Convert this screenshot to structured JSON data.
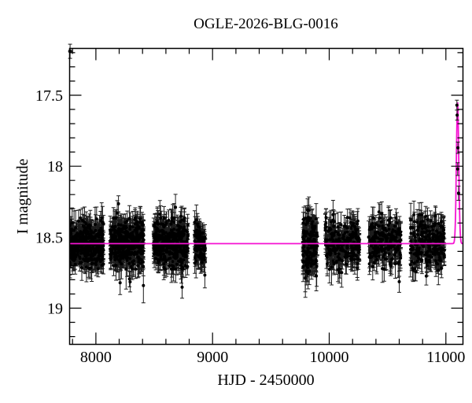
{
  "figure": {
    "background": "#ffffff"
  },
  "chart_data": {
    "type": "scatter",
    "title": "OGLE-2026-BLG-0016",
    "xlabel": "HJD - 2450000",
    "ylabel": "I magnitude",
    "x_range": [
      7775,
      11146
    ],
    "y_range_mag_top_to_bottom": [
      17.17,
      19.255
    ],
    "y_axis_inverted": true,
    "grid": false,
    "legend": "none",
    "x_ticks": [
      {
        "value": 8000,
        "label": "8000"
      },
      {
        "value": 9000,
        "label": "9000"
      },
      {
        "value": 10000,
        "label": "10000"
      },
      {
        "value": 11000,
        "label": "11000"
      }
    ],
    "x_minor_step": 200,
    "y_ticks": [
      {
        "value": 17.5,
        "label": "17.5"
      },
      {
        "value": 18.0,
        "label": "18"
      },
      {
        "value": 18.5,
        "label": "18.5"
      },
      {
        "value": 19.0,
        "label": "19"
      }
    ],
    "y_minor_step": 0.1,
    "colors": {
      "points": "#000000",
      "error_bars": "#1c1c1c",
      "model_curve": "#f513d2",
      "frame": "#000000",
      "background": "#ffffff"
    },
    "model": {
      "description": "flat baseline with sharp brightening event near right edge",
      "baseline_mag": 18.545,
      "t0": 11100,
      "peak_mag": 17.55,
      "width_sigma": 10
    },
    "seasons": [
      {
        "x_start": 7777,
        "x_end": 8066,
        "n": 400,
        "mean_mag": 18.545,
        "sigma": 0.075,
        "median_err": 0.07
      },
      {
        "x_start": 8122,
        "x_end": 8412,
        "n": 400,
        "mean_mag": 18.545,
        "sigma": 0.075,
        "median_err": 0.07
      },
      {
        "x_start": 8494,
        "x_end": 8790,
        "n": 400,
        "mean_mag": 18.545,
        "sigma": 0.075,
        "median_err": 0.07
      },
      {
        "x_start": 8845,
        "x_end": 8938,
        "n": 110,
        "mean_mag": 18.545,
        "sigma": 0.07,
        "median_err": 0.07
      },
      {
        "x_start": 9772,
        "x_end": 9898,
        "n": 150,
        "mean_mag": 18.55,
        "sigma": 0.1,
        "median_err": 0.08
      },
      {
        "x_start": 9964,
        "x_end": 10258,
        "n": 230,
        "mean_mag": 18.545,
        "sigma": 0.085,
        "median_err": 0.07
      },
      {
        "x_start": 10336,
        "x_end": 10616,
        "n": 200,
        "mean_mag": 18.545,
        "sigma": 0.075,
        "median_err": 0.07
      },
      {
        "x_start": 10694,
        "x_end": 10988,
        "n": 230,
        "mean_mag": 18.545,
        "sigma": 0.085,
        "median_err": 0.07
      }
    ],
    "peak_points": [
      {
        "x": 11094,
        "mag": 17.57,
        "err": 0.035
      },
      {
        "x": 11096,
        "mag": 17.64,
        "err": 0.035
      },
      {
        "x": 11103,
        "mag": 17.87,
        "err": 0.04
      },
      {
        "x": 11101,
        "mag": 18.02,
        "err": 0.045
      },
      {
        "x": 11108,
        "mag": 18.19,
        "err": 0.05
      }
    ],
    "corner_outlier": {
      "x": 7779,
      "mag": 17.19,
      "err": 0.05
    }
  }
}
